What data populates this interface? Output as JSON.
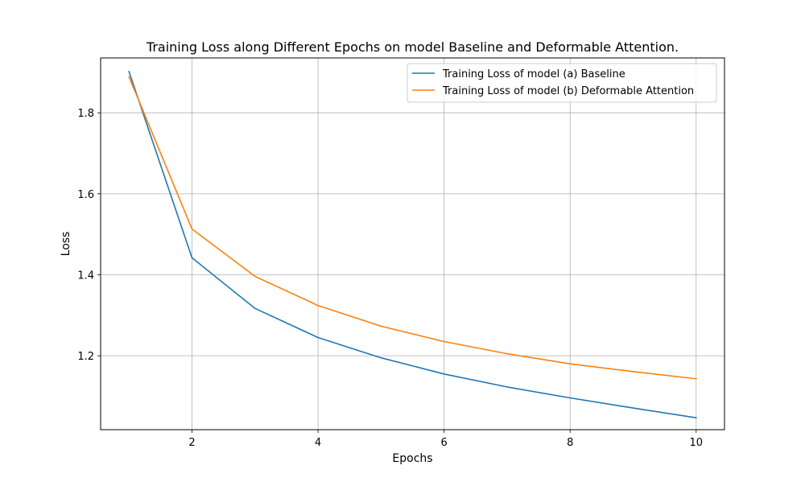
{
  "chart_data": {
    "type": "line",
    "title": "Training Loss along Different Epochs on model Baseline and Deformable Attention.",
    "xlabel": "Epochs",
    "ylabel": "Loss",
    "x": [
      1,
      2,
      3,
      4,
      5,
      6,
      7,
      8,
      9,
      10
    ],
    "xlim": [
      0.55,
      10.45
    ],
    "ylim": [
      1.0175,
      1.9355
    ],
    "xticks": [
      2,
      4,
      6,
      8,
      10
    ],
    "yticks": [
      1.2,
      1.4,
      1.6,
      1.8
    ],
    "xtick_labels": [
      "2",
      "4",
      "6",
      "8",
      "10"
    ],
    "ytick_labels": [
      "1.2",
      "1.4",
      "1.6",
      "1.8"
    ],
    "grid": true,
    "legend_position": "top-right",
    "series": [
      {
        "name": "Training Loss of model (a) Baseline",
        "color": "#1f77b4",
        "values": [
          1.902,
          1.442,
          1.317,
          1.245,
          1.195,
          1.155,
          1.123,
          1.096,
          1.071,
          1.047
        ]
      },
      {
        "name": "Training Loss of model (b) Deformable Attention",
        "color": "#ff7f0e",
        "values": [
          1.889,
          1.513,
          1.396,
          1.324,
          1.273,
          1.235,
          1.205,
          1.18,
          1.161,
          1.143
        ]
      }
    ]
  }
}
